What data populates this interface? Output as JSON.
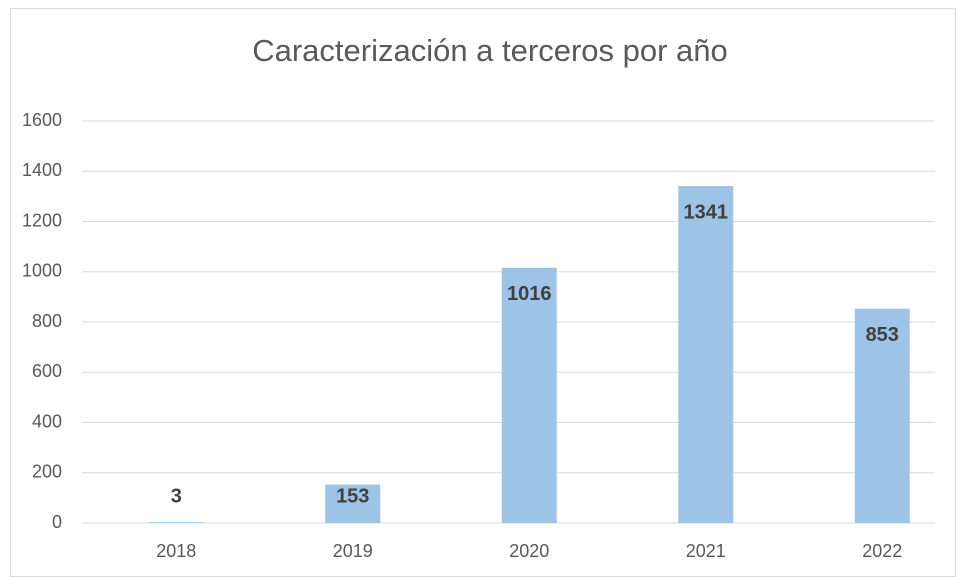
{
  "chart_data": {
    "type": "bar",
    "title": "Caracterización a terceros por año",
    "categories": [
      "2018",
      "2019",
      "2020",
      "2021",
      "2022"
    ],
    "values": [
      3,
      153,
      1016,
      1341,
      853
    ],
    "color": "#9dc3e6",
    "ylim": [
      0,
      1600
    ],
    "yticks": [
      0,
      200,
      400,
      600,
      800,
      1000,
      1200,
      1400,
      1600
    ],
    "grid": true
  }
}
